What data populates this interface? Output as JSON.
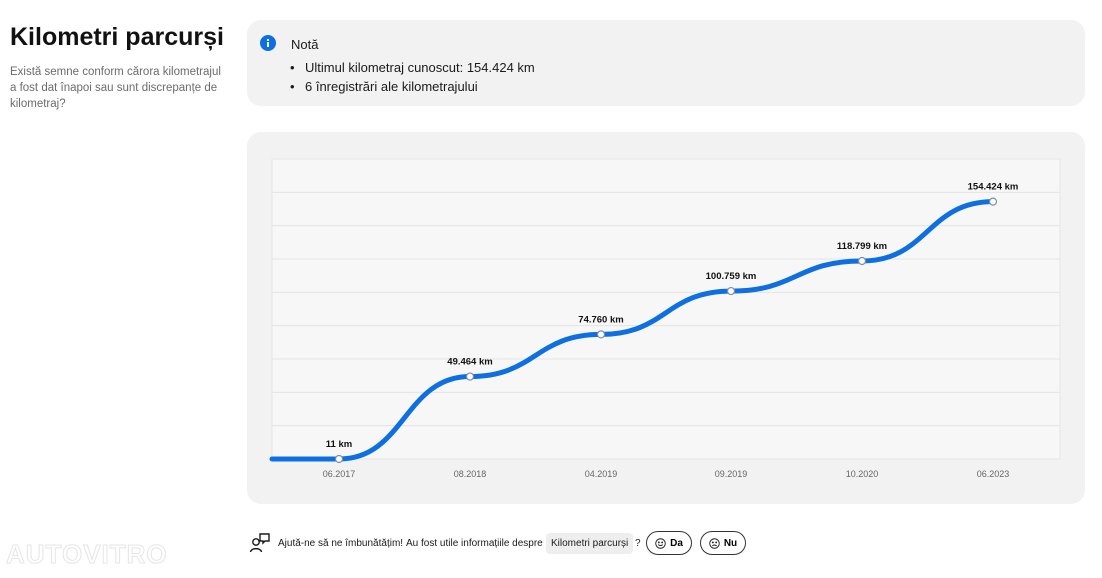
{
  "sidebar": {
    "title": "Kilometri parcurși",
    "subtitle": "Există semne conform cărora kilometrajul a fost dat înapoi sau sunt discrepanțe de kilometraj?"
  },
  "note": {
    "title": "Notă",
    "icon": "info-icon",
    "items": [
      "Ultimul kilometraj cunoscut: 154.424 km",
      "6 înregistrări ale kilometrajului"
    ]
  },
  "chart_data": {
    "type": "line",
    "categories": [
      "06.2017",
      "08.2018",
      "04.2019",
      "09.2019",
      "10.2020",
      "06.2023"
    ],
    "values": [
      11,
      49464,
      74760,
      100759,
      118799,
      154424
    ],
    "data_labels": [
      "11 km",
      "49.464 km",
      "74.760 km",
      "100.759 km",
      "118.799 km",
      "154.424 km"
    ],
    "ylim": [
      0,
      180000
    ],
    "grid": true,
    "line_color": "#0d6fe0"
  },
  "feedback": {
    "icon": "feedback-chat-icon",
    "prompt": "Ajută-ne să ne îmbunătățim!",
    "question": "Au fost utile informațiile despre",
    "topic": "Kilometri parcurși",
    "question_mark": "?",
    "yes_label": "Da",
    "no_label": "Nu"
  },
  "watermark": "AUTOVITRO",
  "colors": {
    "accent": "#0d6fe0",
    "card_bg": "#f2f2f2",
    "plot_bg": "#f7f7f7"
  }
}
